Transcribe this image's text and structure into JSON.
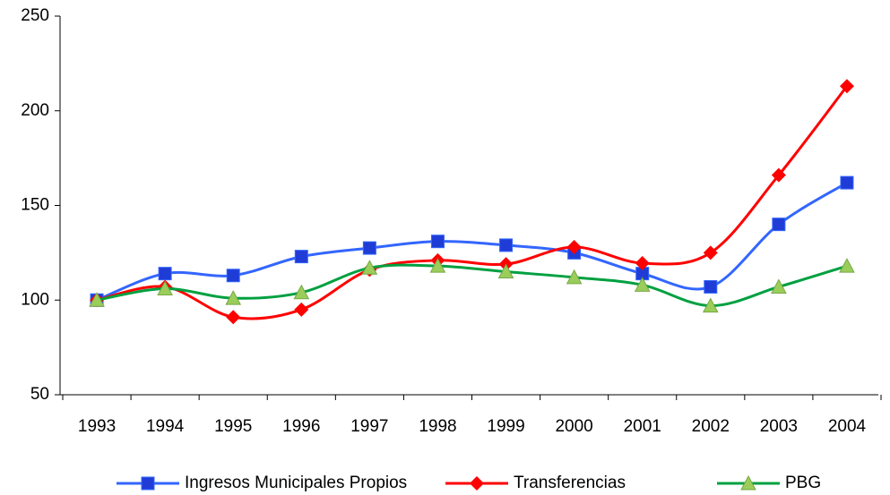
{
  "chart_data": {
    "type": "line",
    "categories": [
      "1993",
      "1994",
      "1995",
      "1996",
      "1997",
      "1998",
      "1999",
      "2000",
      "2001",
      "2002",
      "2003",
      "2004"
    ],
    "series": [
      {
        "name": "Ingresos Municipales Propios",
        "color": "#3366ff",
        "marker": "square",
        "values": [
          100,
          114,
          113,
          123,
          127.5,
          131,
          129,
          125,
          114,
          107,
          140,
          162
        ]
      },
      {
        "name": "Transferencias",
        "color": "#ff0000",
        "marker": "diamond",
        "values": [
          100,
          107,
          91,
          95,
          116,
          121,
          119,
          128,
          119.5,
          125,
          166,
          213
        ]
      },
      {
        "name": "PBG",
        "color": "#00a040",
        "marker": "triangle",
        "values": [
          100,
          106,
          101,
          104,
          117,
          118,
          115,
          112,
          108,
          97,
          107,
          118
        ]
      }
    ],
    "ylim": [
      50,
      250
    ],
    "yticks": [
      50,
      100,
      150,
      200,
      250
    ],
    "grid": false,
    "legend": "bottom"
  }
}
